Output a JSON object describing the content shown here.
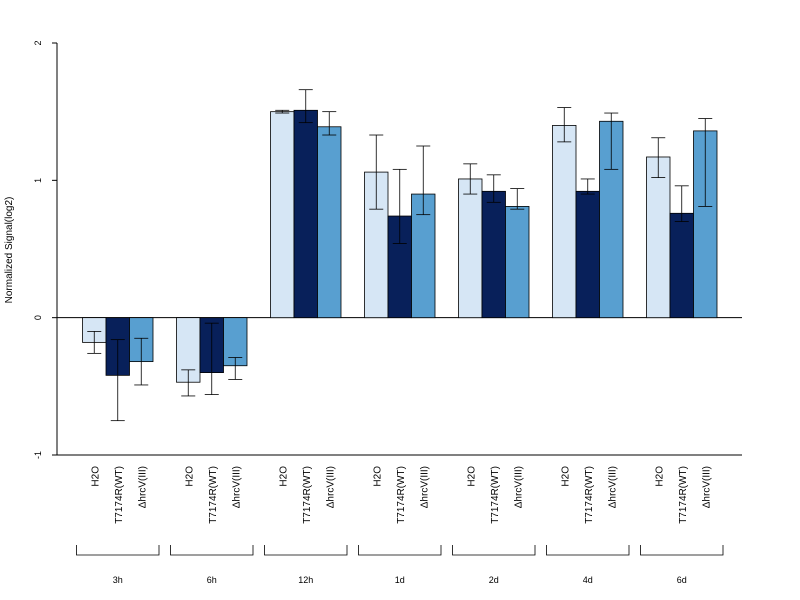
{
  "chart_data": {
    "type": "bar",
    "title": "",
    "xlabel": "",
    "ylabel": "Normalized Signal(log2)",
    "ylim": [
      -1,
      2
    ],
    "yticks": [
      "-1",
      "0",
      "1",
      "2"
    ],
    "grid": false,
    "legend": "none",
    "bar_categories": [
      "H2O",
      "T7174R(WT)",
      "ΔhrcV(III)"
    ],
    "groups": [
      {
        "name": "3h",
        "values": [
          -0.18,
          -0.42,
          -0.32
        ],
        "err_low": [
          -0.26,
          -0.75,
          -0.49
        ],
        "err_high": [
          -0.1,
          -0.16,
          -0.15
        ]
      },
      {
        "name": "6h",
        "values": [
          -0.47,
          -0.4,
          -0.35
        ],
        "err_low": [
          -0.57,
          -0.56,
          -0.45
        ],
        "err_high": [
          -0.38,
          -0.04,
          -0.29
        ]
      },
      {
        "name": "12h",
        "values": [
          1.5,
          1.51,
          1.39
        ],
        "err_low": [
          1.49,
          1.42,
          1.33
        ],
        "err_high": [
          1.51,
          1.66,
          1.5
        ]
      },
      {
        "name": "1d",
        "values": [
          1.06,
          0.74,
          0.9
        ],
        "err_low": [
          0.79,
          0.54,
          0.75
        ],
        "err_high": [
          1.33,
          1.08,
          1.25
        ]
      },
      {
        "name": "2d",
        "values": [
          1.01,
          0.92,
          0.81
        ],
        "err_low": [
          0.9,
          0.84,
          0.79
        ],
        "err_high": [
          1.12,
          1.04,
          0.94
        ]
      },
      {
        "name": "4d",
        "values": [
          1.4,
          0.92,
          1.43
        ],
        "err_low": [
          1.28,
          0.9,
          1.08
        ],
        "err_high": [
          1.53,
          1.01,
          1.49
        ]
      },
      {
        "name": "6d",
        "values": [
          1.17,
          0.76,
          1.36
        ],
        "err_low": [
          1.02,
          0.7,
          0.81
        ],
        "err_high": [
          1.31,
          0.96,
          1.45
        ]
      }
    ],
    "colors": [
      "#d6e6f5",
      "#08205a",
      "#589fd0"
    ]
  }
}
